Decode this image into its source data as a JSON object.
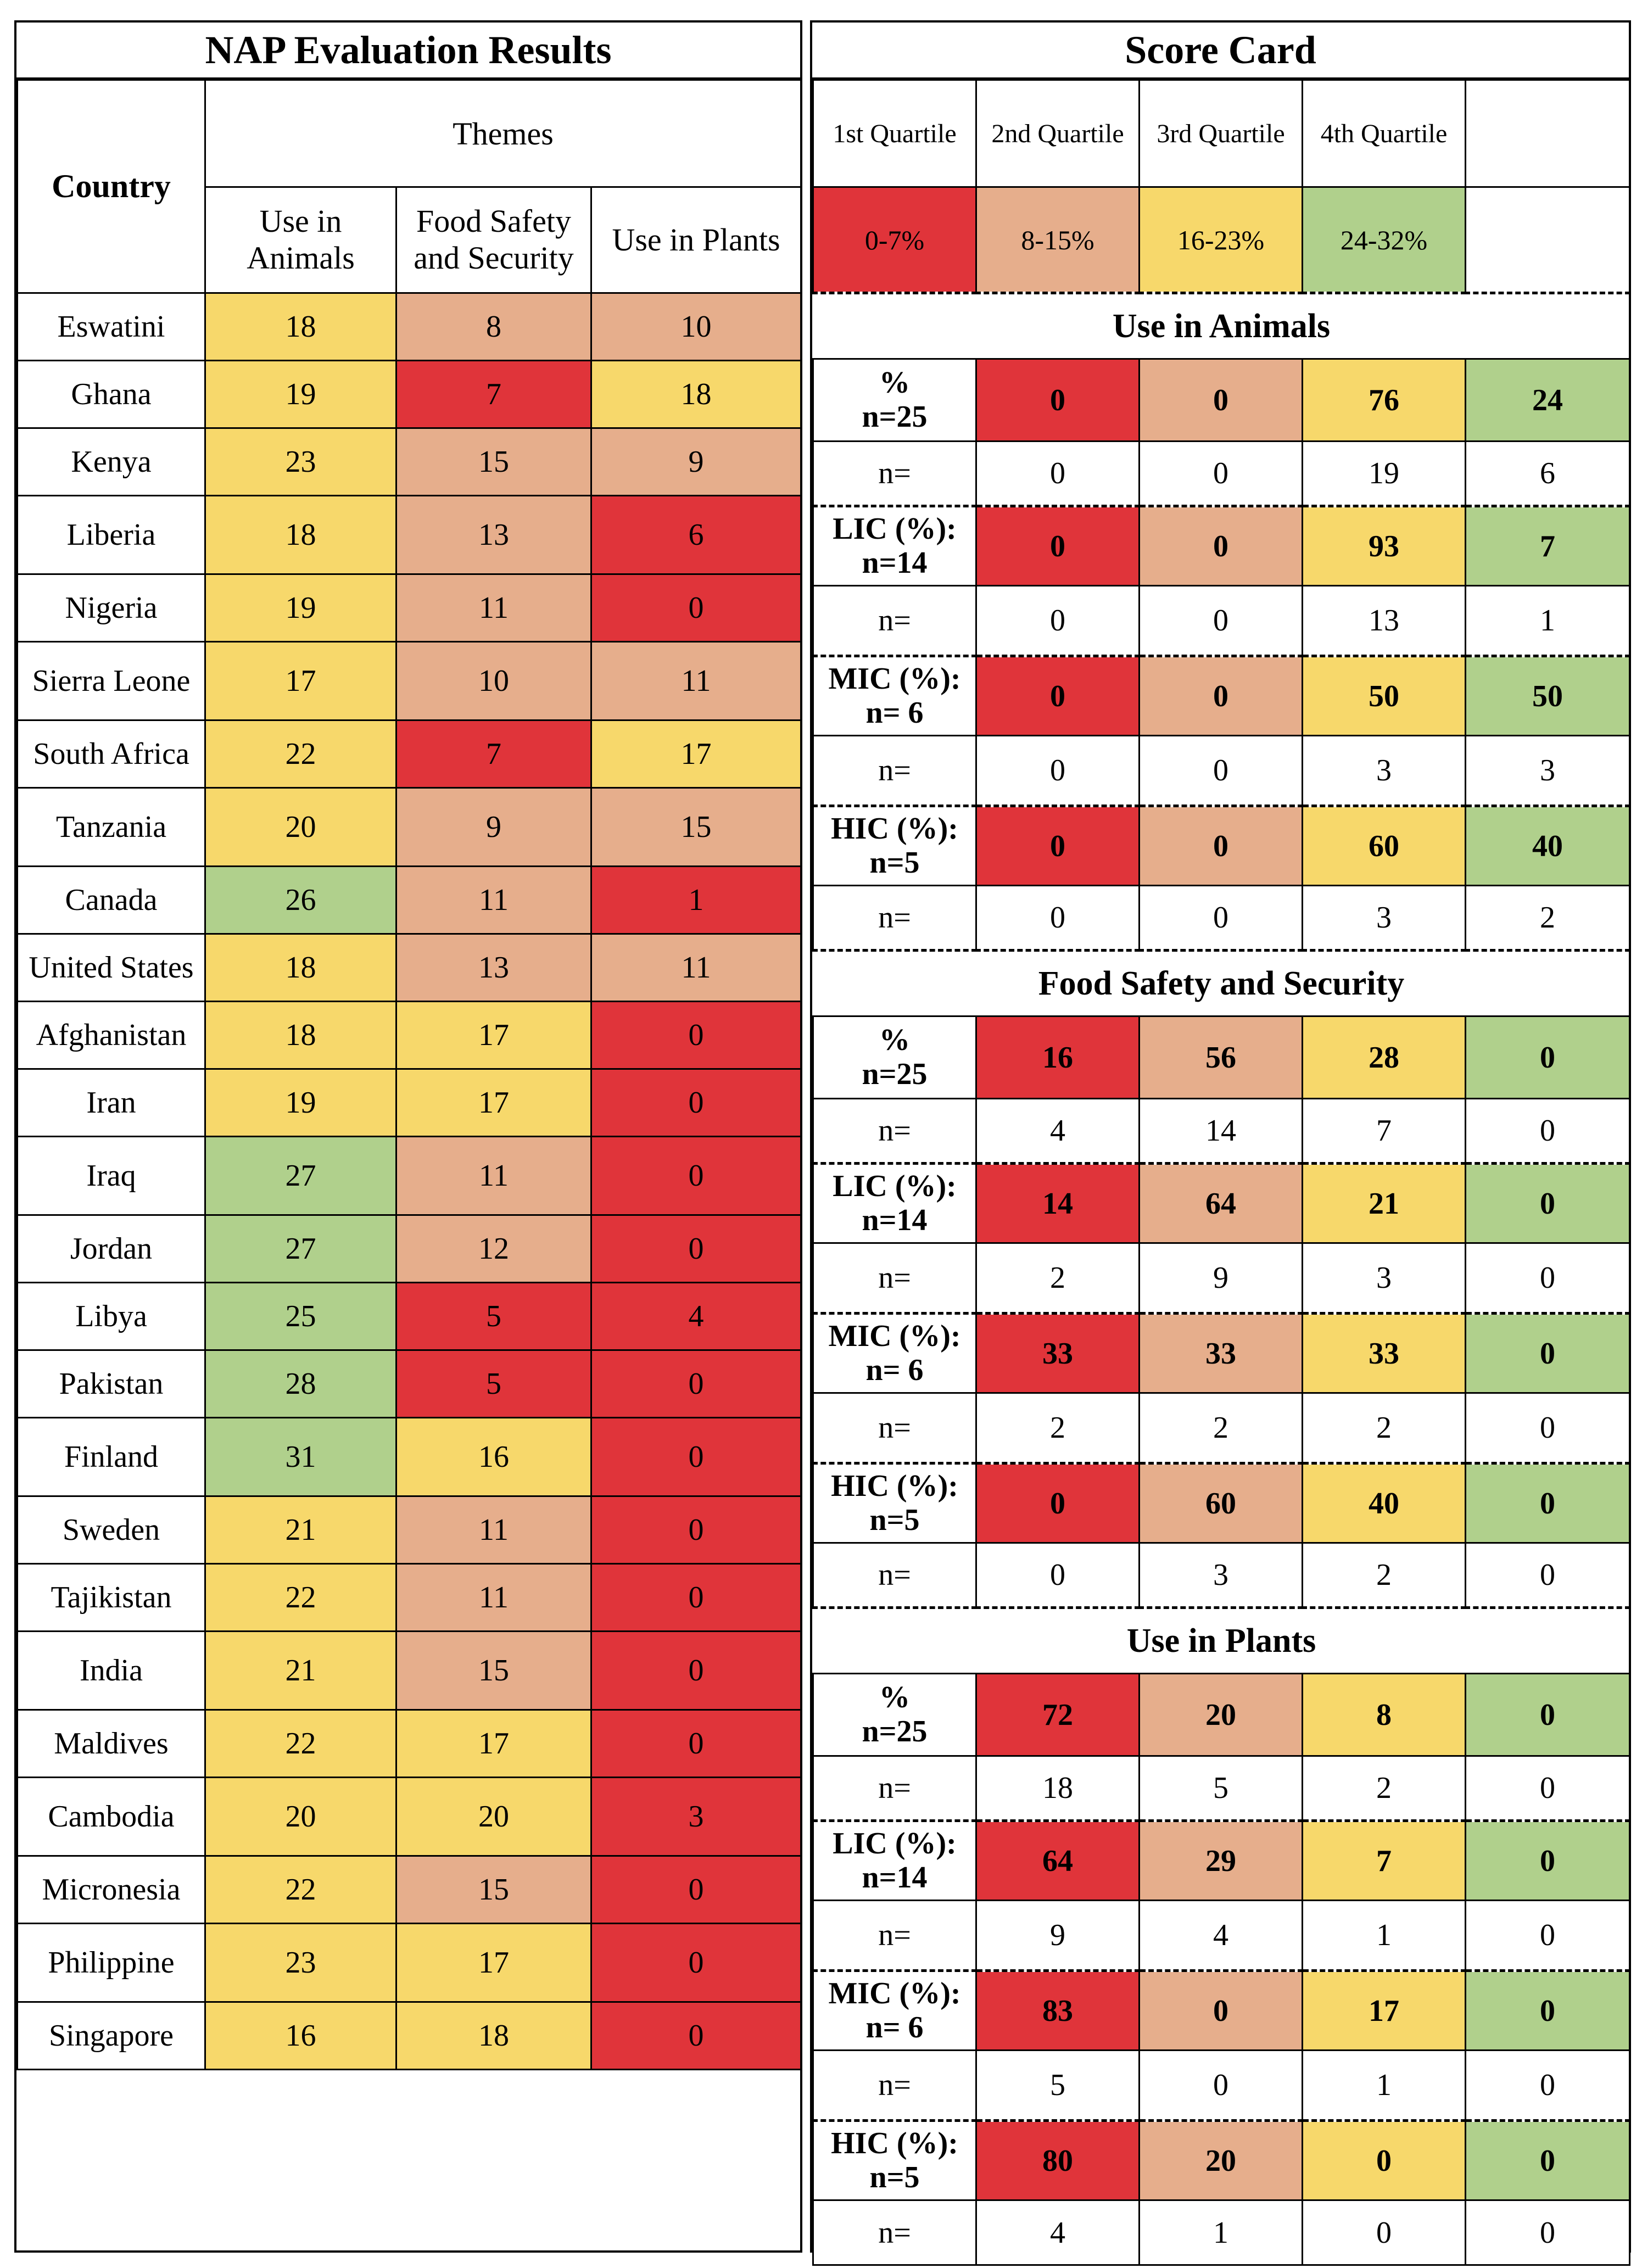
{
  "left": {
    "title": "NAP Evaluation Results",
    "country_header": "Country",
    "themes_header": "Themes",
    "columns": [
      "Use in Animals",
      "Food Safety and Security",
      "Use in Plants"
    ],
    "rows": [
      {
        "country": "Eswatini",
        "values": [
          "18",
          "8",
          "10"
        ],
        "colors": [
          "yellow",
          "orange",
          "orange"
        ]
      },
      {
        "country": "Ghana",
        "values": [
          "19",
          "7",
          "18"
        ],
        "colors": [
          "yellow",
          "red",
          "yellow"
        ]
      },
      {
        "country": "Kenya",
        "values": [
          "23",
          "15",
          "9"
        ],
        "colors": [
          "yellow",
          "orange",
          "orange"
        ]
      },
      {
        "country": "Liberia",
        "values": [
          "18",
          "13",
          "6"
        ],
        "colors": [
          "yellow",
          "orange",
          "red"
        ]
      },
      {
        "country": "Nigeria",
        "values": [
          "19",
          "11",
          "0"
        ],
        "colors": [
          "yellow",
          "orange",
          "red"
        ]
      },
      {
        "country": "Sierra Leone",
        "values": [
          "17",
          "10",
          "11"
        ],
        "colors": [
          "yellow",
          "orange",
          "orange"
        ]
      },
      {
        "country": "South Africa",
        "values": [
          "22",
          "7",
          "17"
        ],
        "colors": [
          "yellow",
          "red",
          "yellow"
        ]
      },
      {
        "country": "Tanzania",
        "values": [
          "20",
          "9",
          "15"
        ],
        "colors": [
          "yellow",
          "orange",
          "orange"
        ]
      },
      {
        "country": "Canada",
        "values": [
          "26",
          "11",
          "1"
        ],
        "colors": [
          "green",
          "orange",
          "red"
        ]
      },
      {
        "country": "United States",
        "values": [
          "18",
          "13",
          "11"
        ],
        "colors": [
          "yellow",
          "orange",
          "orange"
        ]
      },
      {
        "country": "Afghanistan",
        "values": [
          "18",
          "17",
          "0"
        ],
        "colors": [
          "yellow",
          "yellow",
          "red"
        ]
      },
      {
        "country": "Iran",
        "values": [
          "19",
          "17",
          "0"
        ],
        "colors": [
          "yellow",
          "yellow",
          "red"
        ]
      },
      {
        "country": "Iraq",
        "values": [
          "27",
          "11",
          "0"
        ],
        "colors": [
          "green",
          "orange",
          "red"
        ]
      },
      {
        "country": "Jordan",
        "values": [
          "27",
          "12",
          "0"
        ],
        "colors": [
          "green",
          "orange",
          "red"
        ]
      },
      {
        "country": "Libya",
        "values": [
          "25",
          "5",
          "4"
        ],
        "colors": [
          "green",
          "red",
          "red"
        ]
      },
      {
        "country": "Pakistan",
        "values": [
          "28",
          "5",
          "0"
        ],
        "colors": [
          "green",
          "red",
          "red"
        ]
      },
      {
        "country": "Finland",
        "values": [
          "31",
          "16",
          "0"
        ],
        "colors": [
          "green",
          "yellow",
          "red"
        ]
      },
      {
        "country": "Sweden",
        "values": [
          "21",
          "11",
          "0"
        ],
        "colors": [
          "yellow",
          "orange",
          "red"
        ]
      },
      {
        "country": "Tajikistan",
        "values": [
          "22",
          "11",
          "0"
        ],
        "colors": [
          "yellow",
          "orange",
          "red"
        ]
      },
      {
        "country": "India",
        "values": [
          "21",
          "15",
          "0"
        ],
        "colors": [
          "yellow",
          "orange",
          "red"
        ]
      },
      {
        "country": "Maldives",
        "values": [
          "22",
          "17",
          "0"
        ],
        "colors": [
          "yellow",
          "yellow",
          "red"
        ]
      },
      {
        "country": "Cambodia",
        "values": [
          "20",
          "20",
          "3"
        ],
        "colors": [
          "yellow",
          "yellow",
          "red"
        ]
      },
      {
        "country": "Micronesia",
        "values": [
          "22",
          "15",
          "0"
        ],
        "colors": [
          "yellow",
          "orange",
          "red"
        ]
      },
      {
        "country": "Philippine",
        "values": [
          "23",
          "17",
          "0"
        ],
        "colors": [
          "yellow",
          "yellow",
          "red"
        ]
      },
      {
        "country": "Singapore",
        "values": [
          "16",
          "18",
          "0"
        ],
        "colors": [
          "yellow",
          "yellow",
          "red"
        ]
      }
    ]
  },
  "right": {
    "title": "Score Card",
    "quartiles": [
      "1st Quartile",
      "2nd Quartile",
      "3rd Quartile",
      "4th Quartile"
    ],
    "ranges": [
      "0-7%",
      "8-15%",
      "16-23%",
      "24-32%"
    ],
    "sections": [
      {
        "title": "Use in Animals",
        "groups": [
          {
            "pct_label": [
              "%",
              "n=25"
            ],
            "pct": [
              "0",
              "0",
              "76",
              "24"
            ],
            "n_label": "n=",
            "n": [
              "0",
              "0",
              "19",
              "6"
            ]
          },
          {
            "pct_label": [
              "LIC (%):",
              "n=14"
            ],
            "pct": [
              "0",
              "0",
              "93",
              "7"
            ],
            "n_label": "n=",
            "n": [
              "0",
              "0",
              "13",
              "1"
            ]
          },
          {
            "pct_label": [
              "MIC (%):",
              "n= 6"
            ],
            "pct": [
              "0",
              "0",
              "50",
              "50"
            ],
            "n_label": "n=",
            "n": [
              "0",
              "0",
              "3",
              "3"
            ]
          },
          {
            "pct_label": [
              "HIC (%):",
              "n=5"
            ],
            "pct": [
              "0",
              "0",
              "60",
              "40"
            ],
            "n_label": "n=",
            "n": [
              "0",
              "0",
              "3",
              "2"
            ]
          }
        ]
      },
      {
        "title": "Food Safety and Security",
        "groups": [
          {
            "pct_label": [
              "%",
              "n=25"
            ],
            "pct": [
              "16",
              "56",
              "28",
              "0"
            ],
            "n_label": "n=",
            "n": [
              "4",
              "14",
              "7",
              "0"
            ]
          },
          {
            "pct_label": [
              "LIC (%):",
              "n=14"
            ],
            "pct": [
              "14",
              "64",
              "21",
              "0"
            ],
            "n_label": "n=",
            "n": [
              "2",
              "9",
              "3",
              "0"
            ]
          },
          {
            "pct_label": [
              "MIC (%):",
              "n= 6"
            ],
            "pct": [
              "33",
              "33",
              "33",
              "0"
            ],
            "n_label": "n=",
            "n": [
              "2",
              "2",
              "2",
              "0"
            ]
          },
          {
            "pct_label": [
              "HIC (%):",
              "n=5"
            ],
            "pct": [
              "0",
              "60",
              "40",
              "0"
            ],
            "n_label": "n=",
            "n": [
              "0",
              "3",
              "2",
              "0"
            ]
          }
        ]
      },
      {
        "title": "Use in Plants",
        "groups": [
          {
            "pct_label": [
              "%",
              "n=25"
            ],
            "pct": [
              "72",
              "20",
              "8",
              "0"
            ],
            "n_label": "n=",
            "n": [
              "18",
              "5",
              "2",
              "0"
            ]
          },
          {
            "pct_label": [
              "LIC (%):",
              "n=14"
            ],
            "pct": [
              "64",
              "29",
              "7",
              "0"
            ],
            "n_label": "n=",
            "n": [
              "9",
              "4",
              "1",
              "0"
            ]
          },
          {
            "pct_label": [
              "MIC (%):",
              "n= 6"
            ],
            "pct": [
              "83",
              "0",
              "17",
              "0"
            ],
            "n_label": "n=",
            "n": [
              "5",
              "0",
              "1",
              "0"
            ]
          },
          {
            "pct_label": [
              "HIC (%):",
              "n=5"
            ],
            "pct": [
              "80",
              "20",
              "0",
              "0"
            ],
            "n_label": "n=",
            "n": [
              "4",
              "1",
              "0",
              "0"
            ]
          }
        ]
      }
    ]
  },
  "colors": {
    "red": "#e0343a",
    "orange": "#e6ae8c",
    "yellow": "#f7d86b",
    "green": "#b0d08c"
  }
}
